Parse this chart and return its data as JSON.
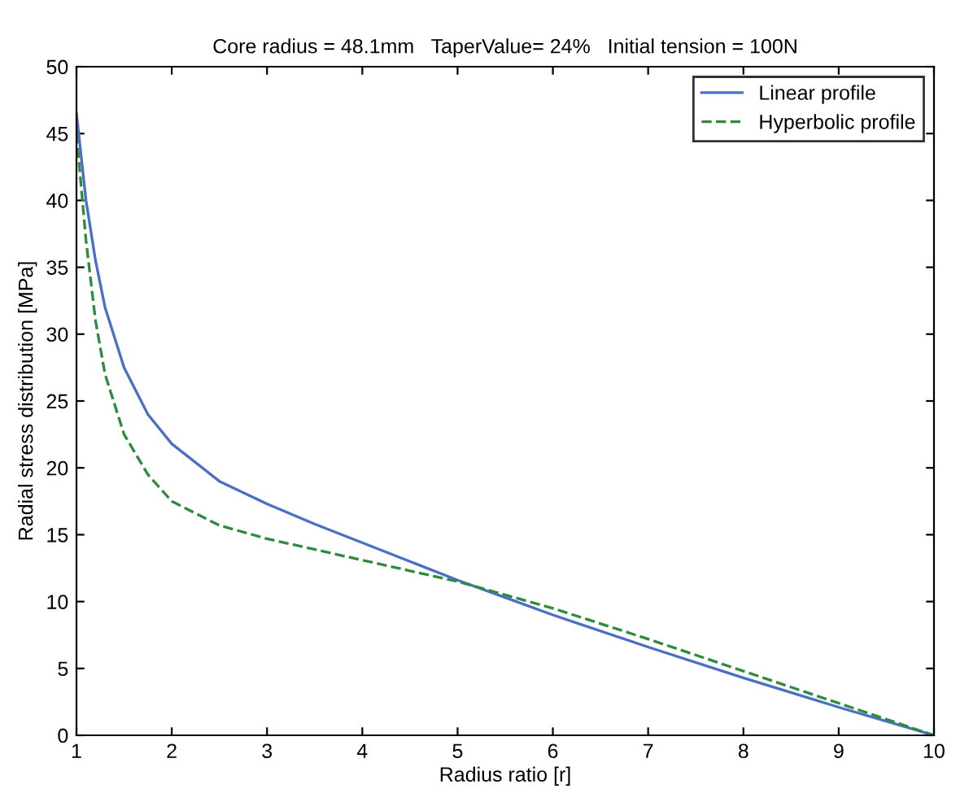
{
  "chart_data": {
    "type": "line",
    "title": "Core radius = 48.1mm   TaperValue= 24%   Initial tension = 100N",
    "xlabel": "Radius ratio [r]",
    "ylabel": "Radial stress distribution [MPa]",
    "xlim": [
      1,
      10
    ],
    "xticks": [
      1,
      2,
      3,
      4,
      5,
      6,
      7,
      8,
      9,
      10
    ],
    "ylim": [
      0,
      50
    ],
    "yticks": [
      0,
      5,
      10,
      15,
      20,
      25,
      30,
      35,
      40,
      45,
      50
    ],
    "grid": false,
    "legend": "top right",
    "series": [
      {
        "name": "Linear profile",
        "color": "#4a6fc4",
        "line_style": "solid",
        "x": [
          1,
          1.1,
          1.2,
          1.3,
          1.5,
          1.75,
          2,
          2.5,
          3,
          3.5,
          4,
          4.5,
          5,
          5.5,
          6,
          7,
          8,
          9,
          10
        ],
        "values": [
          46.5,
          40,
          35.5,
          32,
          27.5,
          24,
          21.8,
          19,
          17.3,
          15.8,
          14.4,
          13,
          11.6,
          10.3,
          9,
          6.6,
          4.3,
          2.1,
          0
        ]
      },
      {
        "name": "Hyperbolic profile",
        "color": "#2e8b3e",
        "line_style": "dashed",
        "x": [
          1,
          1.1,
          1.2,
          1.3,
          1.5,
          1.75,
          2,
          2.5,
          3,
          3.5,
          4,
          4.5,
          5,
          5.5,
          6,
          7,
          8,
          9,
          10
        ],
        "values": [
          45,
          37,
          31,
          27,
          22.5,
          19.5,
          17.5,
          15.7,
          14.7,
          13.9,
          13.1,
          12.3,
          11.5,
          10.5,
          9.5,
          7.2,
          4.8,
          2.4,
          0
        ]
      }
    ]
  }
}
